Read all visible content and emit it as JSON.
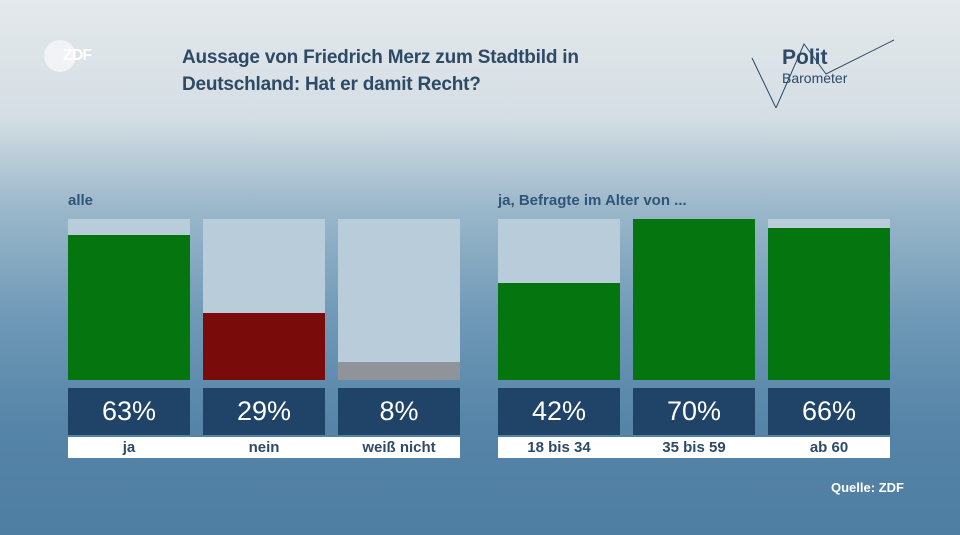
{
  "header": {
    "title_line1": "Aussage von Friedrich Merz zum Stadtbild in",
    "title_line2": "Deutschland: Hat er damit Recht?",
    "channel_logo": "ZDF",
    "program_logo_line1": "Polit",
    "program_logo_line2": "Barometer"
  },
  "source": "Quelle: ZDF",
  "colors": {
    "ja": "#05750f",
    "nein": "#7a0b0b",
    "weiss_nicht": "#8e9499",
    "track": "#b8cdd9",
    "value_box": "#1f4468"
  },
  "chart_data": [
    {
      "type": "bar",
      "title": "alle",
      "categories": [
        "ja",
        "nein",
        "weiß nicht"
      ],
      "values": [
        63,
        29,
        8
      ],
      "value_labels": [
        "63%",
        "29%",
        "8%"
      ],
      "ylim": [
        0,
        70
      ],
      "colors": [
        "#05750f",
        "#7a0b0b",
        "#8e9499"
      ]
    },
    {
      "type": "bar",
      "title": "ja, Befragte im Alter von ...",
      "categories": [
        "18 bis 34",
        "35 bis 59",
        "ab 60"
      ],
      "values": [
        42,
        70,
        66
      ],
      "value_labels": [
        "42%",
        "70%",
        "66%"
      ],
      "ylim": [
        0,
        70
      ],
      "colors": [
        "#05750f",
        "#05750f",
        "#05750f"
      ]
    }
  ]
}
